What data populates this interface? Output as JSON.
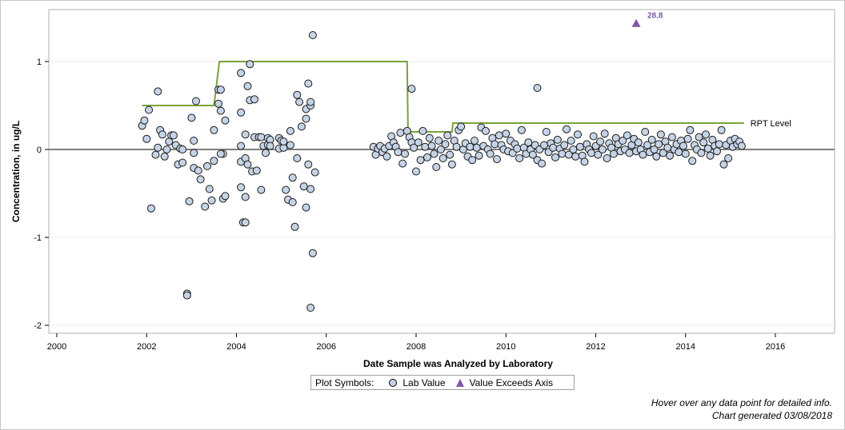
{
  "chart_data": {
    "type": "scatter",
    "xlabel": "Date Sample was Analyzed by Laboratory",
    "ylabel": "Concentration, in ug/L",
    "xlim": [
      1999.9,
      2017.3
    ],
    "ylim": [
      -2.1,
      1.6
    ],
    "x_ticks": [
      2000,
      2002,
      2004,
      2006,
      2008,
      2010,
      2012,
      2014,
      2016
    ],
    "y_ticks": [
      -2,
      -1,
      0,
      1
    ],
    "grid": "horizontal light lines at y ticks",
    "zero_line": 0,
    "series": [
      {
        "name": "Lab Value",
        "marker": "circle",
        "color": "#c5d3e6",
        "points": [
          [
            2001.9,
            0.27
          ],
          [
            2001.95,
            0.33
          ],
          [
            2002.0,
            0.12
          ],
          [
            2002.05,
            0.45
          ],
          [
            2002.1,
            -0.67
          ],
          [
            2002.2,
            -0.06
          ],
          [
            2002.25,
            0.02
          ],
          [
            2002.25,
            0.66
          ],
          [
            2002.3,
            0.22
          ],
          [
            2002.35,
            0.17
          ],
          [
            2002.4,
            -0.08
          ],
          [
            2002.45,
            0.0
          ],
          [
            2002.5,
            0.09
          ],
          [
            2002.55,
            0.16
          ],
          [
            2002.6,
            0.16
          ],
          [
            2002.65,
            0.05
          ],
          [
            2002.7,
            -0.17
          ],
          [
            2002.75,
            0.01
          ],
          [
            2002.8,
            -0.15
          ],
          [
            2002.8,
            0.0
          ],
          [
            2002.9,
            -1.64
          ],
          [
            2002.9,
            -1.66
          ],
          [
            2002.95,
            -0.59
          ],
          [
            2003.0,
            0.36
          ],
          [
            2003.05,
            0.1
          ],
          [
            2003.05,
            -0.04
          ],
          [
            2003.05,
            -0.21
          ],
          [
            2003.1,
            0.55
          ],
          [
            2003.15,
            -0.24
          ],
          [
            2003.2,
            -0.34
          ],
          [
            2003.3,
            -0.65
          ],
          [
            2003.35,
            -0.19
          ],
          [
            2003.4,
            -0.45
          ],
          [
            2003.45,
            -0.58
          ],
          [
            2003.5,
            0.22
          ],
          [
            2003.5,
            -0.13
          ],
          [
            2003.6,
            0.68
          ],
          [
            2003.6,
            0.52
          ],
          [
            2003.65,
            0.68
          ],
          [
            2003.65,
            0.44
          ],
          [
            2003.7,
            -0.05
          ],
          [
            2003.7,
            -0.56
          ],
          [
            2003.75,
            0.33
          ],
          [
            2003.75,
            -0.53
          ],
          [
            2003.65,
            -0.05
          ],
          [
            2004.1,
            0.87
          ],
          [
            2004.1,
            0.42
          ],
          [
            2004.1,
            0.04
          ],
          [
            2004.1,
            -0.14
          ],
          [
            2004.1,
            -0.43
          ],
          [
            2004.15,
            -0.83
          ],
          [
            2004.2,
            -0.83
          ],
          [
            2004.2,
            0.17
          ],
          [
            2004.2,
            -0.1
          ],
          [
            2004.2,
            -0.54
          ],
          [
            2004.25,
            0.72
          ],
          [
            2004.25,
            -0.17
          ],
          [
            2004.3,
            0.97
          ],
          [
            2004.3,
            0.56
          ],
          [
            2004.35,
            -0.25
          ],
          [
            2004.4,
            0.57
          ],
          [
            2004.4,
            0.14
          ],
          [
            2004.45,
            -0.24
          ],
          [
            2004.5,
            0.14
          ],
          [
            2004.55,
            0.14
          ],
          [
            2004.55,
            -0.46
          ],
          [
            2004.6,
            0.04
          ],
          [
            2004.65,
            -0.04
          ],
          [
            2004.7,
            0.13
          ],
          [
            2004.7,
            0.05
          ],
          [
            2004.75,
            0.11
          ],
          [
            2004.75,
            0.04
          ],
          [
            2004.95,
            0.01
          ],
          [
            2004.95,
            0.13
          ],
          [
            2005.0,
            0.1
          ],
          [
            2005.05,
            0.02
          ],
          [
            2005.05,
            0.09
          ],
          [
            2005.1,
            -0.46
          ],
          [
            2005.15,
            -0.57
          ],
          [
            2005.2,
            0.05
          ],
          [
            2005.2,
            0.21
          ],
          [
            2005.25,
            -0.6
          ],
          [
            2005.25,
            -0.32
          ],
          [
            2005.3,
            -0.88
          ],
          [
            2005.35,
            0.62
          ],
          [
            2005.35,
            -0.1
          ],
          [
            2005.4,
            0.54
          ],
          [
            2005.45,
            0.26
          ],
          [
            2005.5,
            -0.42
          ],
          [
            2005.55,
            0.46
          ],
          [
            2005.55,
            0.35
          ],
          [
            2005.55,
            -0.66
          ],
          [
            2005.6,
            0.75
          ],
          [
            2005.65,
            0.5
          ],
          [
            2005.65,
            0.54
          ],
          [
            2005.65,
            -0.45
          ],
          [
            2005.7,
            -1.18
          ],
          [
            2005.65,
            -1.8
          ],
          [
            2005.7,
            1.3
          ],
          [
            2005.75,
            -0.26
          ],
          [
            2005.6,
            -0.17
          ],
          [
            2007.9,
            0.69
          ],
          [
            2010.7,
            0.7
          ],
          [
            2007.05,
            0.03
          ],
          [
            2007.1,
            -0.06
          ],
          [
            2007.15,
            0.01
          ],
          [
            2007.2,
            0.04
          ],
          [
            2007.25,
            -0.03
          ],
          [
            2007.3,
            0.01
          ],
          [
            2007.35,
            -0.08
          ],
          [
            2007.4,
            0.04
          ],
          [
            2007.45,
            0.15
          ],
          [
            2007.5,
            0.08
          ],
          [
            2007.55,
            0.03
          ],
          [
            2007.6,
            -0.03
          ],
          [
            2007.65,
            0.19
          ],
          [
            2007.7,
            -0.16
          ],
          [
            2007.75,
            -0.05
          ],
          [
            2007.8,
            0.21
          ],
          [
            2007.85,
            0.14
          ],
          [
            2007.9,
            0.08
          ],
          [
            2007.95,
            0.02
          ],
          [
            2008.0,
            -0.25
          ],
          [
            2008.05,
            0.08
          ],
          [
            2008.1,
            -0.12
          ],
          [
            2008.15,
            0.21
          ],
          [
            2008.2,
            0.03
          ],
          [
            2008.25,
            -0.09
          ],
          [
            2008.3,
            0.13
          ],
          [
            2008.35,
            0.04
          ],
          [
            2008.4,
            -0.05
          ],
          [
            2008.45,
            -0.2
          ],
          [
            2008.5,
            0.1
          ],
          [
            2008.55,
            0.0
          ],
          [
            2008.6,
            -0.1
          ],
          [
            2008.65,
            0.06
          ],
          [
            2008.7,
            0.16
          ],
          [
            2008.75,
            -0.06
          ],
          [
            2008.8,
            -0.17
          ],
          [
            2008.85,
            0.1
          ],
          [
            2008.9,
            0.03
          ],
          [
            2008.95,
            0.22
          ],
          [
            2009.0,
            0.26
          ],
          [
            2009.05,
            0.0
          ],
          [
            2009.1,
            0.07
          ],
          [
            2009.15,
            -0.08
          ],
          [
            2009.2,
            0.03
          ],
          [
            2009.25,
            -0.12
          ],
          [
            2009.3,
            0.1
          ],
          [
            2009.35,
            0.02
          ],
          [
            2009.4,
            -0.07
          ],
          [
            2009.45,
            0.25
          ],
          [
            2009.5,
            0.04
          ],
          [
            2009.55,
            0.21
          ],
          [
            2009.6,
            0.0
          ],
          [
            2009.65,
            -0.05
          ],
          [
            2009.7,
            0.13
          ],
          [
            2009.75,
            0.06
          ],
          [
            2009.8,
            -0.11
          ],
          [
            2009.85,
            0.16
          ],
          [
            2009.9,
            0.05
          ],
          [
            2009.95,
            0.0
          ],
          [
            2010.0,
            0.18
          ],
          [
            2010.05,
            -0.02
          ],
          [
            2010.1,
            0.1
          ],
          [
            2010.15,
            -0.04
          ],
          [
            2010.2,
            0.06
          ],
          [
            2010.25,
            0.01
          ],
          [
            2010.3,
            -0.1
          ],
          [
            2010.35,
            0.22
          ],
          [
            2010.4,
            0.02
          ],
          [
            2010.45,
            -0.05
          ],
          [
            2010.5,
            0.08
          ],
          [
            2010.55,
            0.0
          ],
          [
            2010.6,
            -0.06
          ],
          [
            2010.65,
            0.05
          ],
          [
            2010.7,
            -0.12
          ],
          [
            2010.75,
            0.0
          ],
          [
            2010.8,
            -0.16
          ],
          [
            2010.85,
            0.05
          ],
          [
            2010.9,
            0.2
          ],
          [
            2010.95,
            -0.03
          ],
          [
            2011.0,
            0.07
          ],
          [
            2011.05,
            0.02
          ],
          [
            2011.1,
            -0.09
          ],
          [
            2011.15,
            0.11
          ],
          [
            2011.2,
            0.01
          ],
          [
            2011.25,
            -0.05
          ],
          [
            2011.3,
            0.05
          ],
          [
            2011.35,
            0.23
          ],
          [
            2011.4,
            -0.06
          ],
          [
            2011.45,
            0.1
          ],
          [
            2011.5,
            0.0
          ],
          [
            2011.55,
            -0.08
          ],
          [
            2011.6,
            0.17
          ],
          [
            2011.65,
            0.03
          ],
          [
            2011.7,
            -0.07
          ],
          [
            2011.75,
            -0.14
          ],
          [
            2011.8,
            0.06
          ],
          [
            2011.85,
            0.0
          ],
          [
            2011.9,
            -0.04
          ],
          [
            2011.95,
            0.15
          ],
          [
            2012.0,
            0.04
          ],
          [
            2012.05,
            -0.06
          ],
          [
            2012.1,
            0.09
          ],
          [
            2012.15,
            0.0
          ],
          [
            2012.2,
            0.18
          ],
          [
            2012.25,
            -0.1
          ],
          [
            2012.3,
            0.07
          ],
          [
            2012.35,
            0.02
          ],
          [
            2012.4,
            -0.05
          ],
          [
            2012.45,
            0.13
          ],
          [
            2012.5,
            0.06
          ],
          [
            2012.55,
            -0.02
          ],
          [
            2012.6,
            0.1
          ],
          [
            2012.65,
            0.0
          ],
          [
            2012.7,
            0.16
          ],
          [
            2012.75,
            -0.04
          ],
          [
            2012.8,
            0.05
          ],
          [
            2012.85,
            0.12
          ],
          [
            2012.9,
            -0.02
          ],
          [
            2012.95,
            0.08
          ],
          [
            2013.0,
            0.0
          ],
          [
            2013.05,
            -0.06
          ],
          [
            2013.1,
            0.2
          ],
          [
            2013.15,
            0.05
          ],
          [
            2013.2,
            -0.03
          ],
          [
            2013.25,
            0.11
          ],
          [
            2013.3,
            0.0
          ],
          [
            2013.35,
            -0.08
          ],
          [
            2013.4,
            0.06
          ],
          [
            2013.45,
            0.17
          ],
          [
            2013.5,
            -0.04
          ],
          [
            2013.55,
            0.09
          ],
          [
            2013.6,
            0.02
          ],
          [
            2013.65,
            -0.07
          ],
          [
            2013.7,
            0.14
          ],
          [
            2013.75,
            0.0
          ],
          [
            2013.8,
            0.06
          ],
          [
            2013.85,
            -0.03
          ],
          [
            2013.9,
            0.1
          ],
          [
            2013.95,
            0.04
          ],
          [
            2014.0,
            -0.05
          ],
          [
            2014.05,
            0.12
          ],
          [
            2014.1,
            0.22
          ],
          [
            2014.15,
            -0.13
          ],
          [
            2014.2,
            0.05
          ],
          [
            2014.25,
            0.0
          ],
          [
            2014.3,
            0.14
          ],
          [
            2014.35,
            -0.04
          ],
          [
            2014.4,
            0.08
          ],
          [
            2014.45,
            0.17
          ],
          [
            2014.5,
            0.01
          ],
          [
            2014.55,
            -0.07
          ],
          [
            2014.6,
            0.11
          ],
          [
            2014.65,
            0.04
          ],
          [
            2014.7,
            -0.02
          ],
          [
            2014.75,
            0.06
          ],
          [
            2014.8,
            0.22
          ],
          [
            2014.85,
            -0.17
          ],
          [
            2014.9,
            0.05
          ],
          [
            2014.95,
            -0.1
          ],
          [
            2015.0,
            0.1
          ],
          [
            2015.05,
            0.03
          ],
          [
            2015.1,
            0.12
          ],
          [
            2015.15,
            0.06
          ],
          [
            2015.2,
            0.09
          ],
          [
            2015.25,
            0.04
          ]
        ]
      },
      {
        "name": "Value Exceeds Axis",
        "marker": "triangle",
        "color": "#7b5aa6",
        "points": [
          [
            2012.9,
            1.43
          ]
        ],
        "point_labels": [
          "28.8"
        ]
      },
      {
        "name": "RPT Level",
        "type": "step-line",
        "color": "#7aa23a",
        "points": [
          [
            2001.9,
            0.5
          ],
          [
            2003.5,
            0.5
          ],
          [
            2003.62,
            1.0
          ],
          [
            2007.8,
            1.0
          ],
          [
            2007.82,
            0.2
          ],
          [
            2008.8,
            0.2
          ],
          [
            2008.82,
            0.3
          ],
          [
            2015.3,
            0.3
          ]
        ],
        "end_label": "RPT Level"
      }
    ],
    "legend": {
      "title": "Plot Symbols:",
      "items": [
        "Lab Value",
        "Value Exceeds Axis"
      ],
      "placement": "bottom-center"
    }
  },
  "footnotes": {
    "hover": "Hover over any data point for detailed info.",
    "generated": "Chart generated 03/08/2018"
  },
  "colors": {
    "lab_fill": "#c5d3e6",
    "exceeds": "#7b5aa6",
    "rpt_line": "#7aa23a",
    "zero_line": "#808080",
    "grid": "#e8e8e8"
  }
}
